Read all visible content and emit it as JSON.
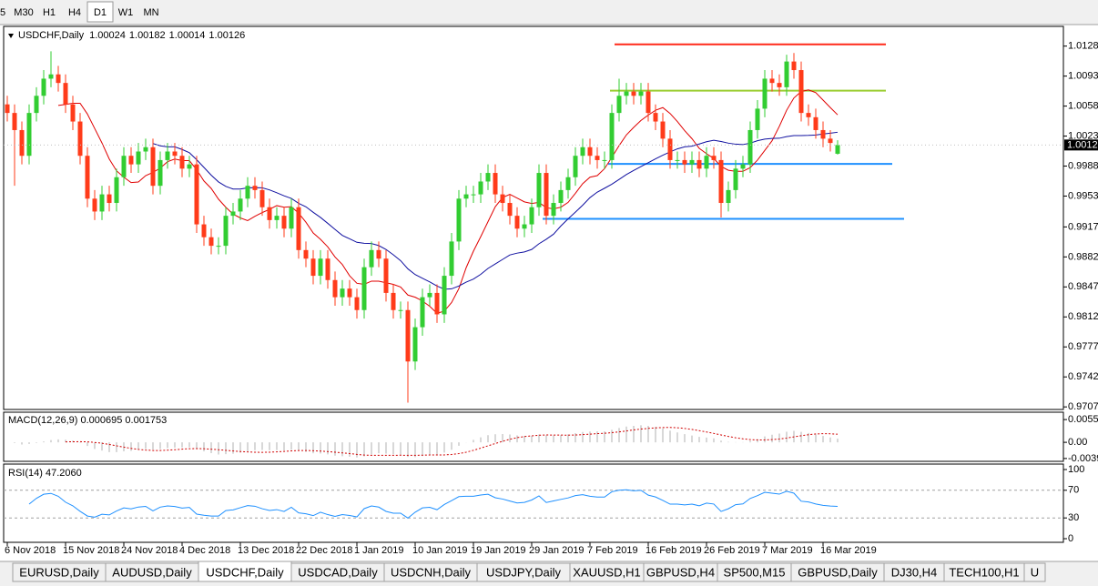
{
  "timeframes": [
    "5",
    "M30",
    "H1",
    "H4",
    "D1",
    "W1",
    "MN"
  ],
  "active_timeframe": 4,
  "chart": {
    "type": "candlestick",
    "title": "USDCHF,Daily",
    "ohlc": [
      1.00024,
      1.00182,
      1.00014,
      1.00126
    ],
    "current_price": 1.00126,
    "up_color": "#32cd32",
    "down_color": "#ff3b1a",
    "ylim": [
      0.9704,
      1.0151
    ],
    "yticks": [
      {
        "value": 1.0128,
        "label": "1.01280"
      },
      {
        "value": 1.0093,
        "label": "1.00930"
      },
      {
        "value": 1.0058,
        "label": "1.00580"
      },
      {
        "value": 1.0023,
        "label": "1.00230"
      },
      {
        "value": 0.9988,
        "label": "0.99880"
      },
      {
        "value": 0.9953,
        "label": "0.99530"
      },
      {
        "value": 0.9917,
        "label": "0.99170"
      },
      {
        "value": 0.9882,
        "label": "0.98820"
      },
      {
        "value": 0.9847,
        "label": "0.98470"
      },
      {
        "value": 0.9812,
        "label": "0.98120"
      },
      {
        "value": 0.9777,
        "label": "0.97770"
      },
      {
        "value": 0.9742,
        "label": "0.97420"
      },
      {
        "value": 0.9707,
        "label": "0.97070"
      }
    ],
    "x_labels": [
      "6 Nov 2018",
      "15 Nov 2018",
      "24 Nov 2018",
      "4 Dec 2018",
      "13 Dec 2018",
      "22 Dec 2018",
      "1 Jan 2019",
      "10 Jan 2019",
      "19 Jan 2019",
      "29 Jan 2019",
      "7 Feb 2019",
      "16 Feb 2019",
      "26 Feb 2019",
      "7 Mar 2019",
      "16 Mar 2019"
    ],
    "open": [
      1.006,
      1.005,
      1.003,
      1.0,
      1.005,
      1.007,
      1.009,
      1.0095,
      1.0085,
      1.006,
      1.004,
      1.0,
      0.995,
      0.9935,
      0.9955,
      0.9945,
      0.9975,
      1.0,
      0.999,
      1.0005,
      1.001,
      0.9965,
      0.9995,
      1.0005,
      1.0,
      0.9985,
      0.999,
      0.992,
      0.9905,
      0.9895,
      0.9895,
      0.993,
      0.9935,
      0.995,
      0.9965,
      0.996,
      0.994,
      0.9925,
      0.993,
      0.9915,
      0.994,
      0.989,
      0.988,
      0.986,
      0.988,
      0.9855,
      0.9835,
      0.9845,
      0.9835,
      0.982,
      0.987,
      0.989,
      0.988,
      0.984,
      0.982,
      0.982,
      0.976,
      0.98,
      0.9835,
      0.984,
      0.9815,
      0.986,
      0.99,
      0.995,
      0.9955,
      0.9955,
      0.997,
      0.998,
      0.9955,
      0.9945,
      0.993,
      0.9915,
      0.992,
      0.994,
      0.998,
      0.993,
      0.9945,
      0.996,
      0.9975,
      1.0,
      1.001,
      1.0,
      0.9995,
      0.9995,
      1.005,
      1.007,
      1.0075,
      1.007,
      1.0075,
      1.005,
      1.004,
      1.002,
      0.9995,
      0.9995,
      0.999,
      0.9995,
      0.9985,
      1.0,
      0.9995,
      0.9945,
      0.996,
      0.9985,
      0.999,
      1.003,
      1.0055,
      1.009,
      1.0085,
      1.008,
      1.011,
      1.01,
      1.005,
      1.0045,
      1.003,
      1.002,
      1.00024
    ],
    "high": [
      1.007,
      1.006,
      1.004,
      1.006,
      1.008,
      1.01,
      1.0122,
      1.0105,
      1.0095,
      1.007,
      1.005,
      1.001,
      0.996,
      0.9965,
      0.9965,
      0.9985,
      1.001,
      1.001,
      1.0015,
      1.002,
      1.002,
      1.0005,
      1.0015,
      1.0015,
      1.001,
      1.0,
      1.0,
      0.993,
      0.9915,
      0.9905,
      0.994,
      0.9945,
      0.996,
      0.9975,
      0.9975,
      0.997,
      0.995,
      0.994,
      0.994,
      0.995,
      0.995,
      0.99,
      0.989,
      0.989,
      0.989,
      0.9865,
      0.9855,
      0.9855,
      0.9845,
      0.988,
      0.99,
      0.99,
      0.989,
      0.985,
      0.983,
      0.983,
      0.981,
      0.9845,
      0.985,
      0.985,
      0.987,
      0.991,
      0.996,
      0.9965,
      0.9965,
      0.998,
      0.999,
      0.999,
      0.9965,
      0.9955,
      0.994,
      0.993,
      0.995,
      0.999,
      0.999,
      0.9955,
      0.997,
      0.9985,
      1.001,
      1.002,
      1.002,
      1.001,
      1.0005,
      1.006,
      1.009,
      1.0085,
      1.0085,
      1.0085,
      1.0085,
      1.006,
      1.005,
      1.003,
      1.0005,
      1.0005,
      1.0005,
      1.0005,
      1.001,
      1.001,
      1.0005,
      0.997,
      0.9995,
      1.0,
      1.004,
      1.0065,
      1.01,
      1.01,
      1.0095,
      1.0118,
      1.012,
      1.011,
      1.006,
      1.0055,
      1.004,
      1.003,
      1.00182
    ],
    "low": [
      1.004,
      0.9965,
      0.999,
      0.999,
      1.004,
      1.006,
      1.008,
      1.0075,
      1.005,
      1.003,
      0.999,
      0.994,
      0.9925,
      0.9925,
      0.9935,
      0.9935,
      0.9965,
      0.998,
      0.998,
      0.9995,
      0.9955,
      0.9955,
      0.9985,
      0.999,
      0.9975,
      0.9975,
      0.991,
      0.9895,
      0.9885,
      0.9885,
      0.9885,
      0.992,
      0.9925,
      0.994,
      0.995,
      0.993,
      0.9915,
      0.9915,
      0.9905,
      0.9905,
      0.988,
      0.987,
      0.985,
      0.985,
      0.9845,
      0.9825,
      0.9825,
      0.9825,
      0.981,
      0.981,
      0.986,
      0.987,
      0.983,
      0.981,
      0.981,
      0.9712,
      0.975,
      0.979,
      0.9825,
      0.9805,
      0.9805,
      0.985,
      0.989,
      0.994,
      0.9945,
      0.9945,
      0.996,
      0.9945,
      0.9935,
      0.992,
      0.9905,
      0.9905,
      0.991,
      0.993,
      0.992,
      0.992,
      0.9935,
      0.995,
      0.9965,
      0.999,
      0.999,
      0.9985,
      0.9985,
      0.9985,
      1.004,
      1.006,
      1.006,
      1.006,
      1.004,
      1.003,
      1.001,
      0.9985,
      0.9985,
      0.998,
      0.998,
      0.9975,
      0.9975,
      0.9985,
      0.9928,
      0.9935,
      0.995,
      0.9975,
      0.998,
      1.002,
      1.0045,
      1.0075,
      1.007,
      1.007,
      1.009,
      1.004,
      1.0035,
      1.002,
      1.001,
      1.0005,
      1.00014
    ],
    "close": [
      1.005,
      1.003,
      1.0,
      1.005,
      1.007,
      1.009,
      1.0095,
      1.0085,
      1.006,
      1.004,
      1.0,
      0.995,
      0.9935,
      0.9955,
      0.9945,
      0.9975,
      1.0,
      0.999,
      1.0005,
      1.001,
      0.9965,
      0.9995,
      1.0005,
      1.0,
      0.9985,
      0.999,
      0.992,
      0.9905,
      0.9895,
      0.9895,
      0.993,
      0.9935,
      0.995,
      0.9965,
      0.996,
      0.994,
      0.9925,
      0.993,
      0.9915,
      0.994,
      0.989,
      0.988,
      0.986,
      0.988,
      0.9855,
      0.9835,
      0.9845,
      0.9835,
      0.982,
      0.987,
      0.989,
      0.988,
      0.984,
      0.982,
      0.982,
      0.976,
      0.98,
      0.9835,
      0.984,
      0.9815,
      0.986,
      0.99,
      0.995,
      0.9955,
      0.9955,
      0.997,
      0.998,
      0.9955,
      0.9945,
      0.993,
      0.9915,
      0.992,
      0.994,
      0.998,
      0.993,
      0.9945,
      0.996,
      0.9975,
      1.0,
      1.001,
      1.0,
      0.9995,
      0.9995,
      1.005,
      1.007,
      1.0075,
      1.007,
      1.0075,
      1.005,
      1.004,
      1.002,
      0.9995,
      0.9995,
      0.999,
      0.9995,
      0.9985,
      1.0,
      0.9995,
      0.9945,
      0.996,
      0.9985,
      0.999,
      1.003,
      1.0055,
      1.009,
      1.0085,
      1.008,
      1.011,
      1.01,
      1.005,
      1.0045,
      1.003,
      1.002,
      1.0015,
      1.00126
    ],
    "levels": [
      {
        "value": 1.013,
        "color": "#ff2a1a"
      },
      {
        "value": 1.0076,
        "color": "#9acd32"
      },
      {
        "value": 0.99905,
        "color": "#1e90ff"
      },
      {
        "value": 0.99265,
        "color": "#1e90ff"
      }
    ],
    "macd": {
      "label": "MACD(12,26,9) 0.000695 0.001753",
      "ylim": [
        -0.0044,
        0.0071
      ],
      "yticks": [
        0.00553,
        {
          "value": 0,
          "label": "0.00"
        },
        -0.00393
      ]
    },
    "rsi": {
      "label": "RSI(14) 47.2060",
      "ylim": [
        0,
        100
      ],
      "yticks": [
        100,
        70,
        30,
        0
      ],
      "levels": [
        70,
        30
      ]
    }
  },
  "tabs": [
    "EURUSD,Daily",
    "AUDUSD,Daily",
    "USDCHF,Daily",
    "USDCAD,Daily",
    "USDCNH,Daily",
    "USDJPY,Daily",
    "XAUUSD,H1",
    "GBPUSD,H4",
    "SP500,M15",
    "GBPUSD,Daily",
    "DJ30,H4",
    "TECH100,H1",
    "U"
  ],
  "active_tab": 2
}
